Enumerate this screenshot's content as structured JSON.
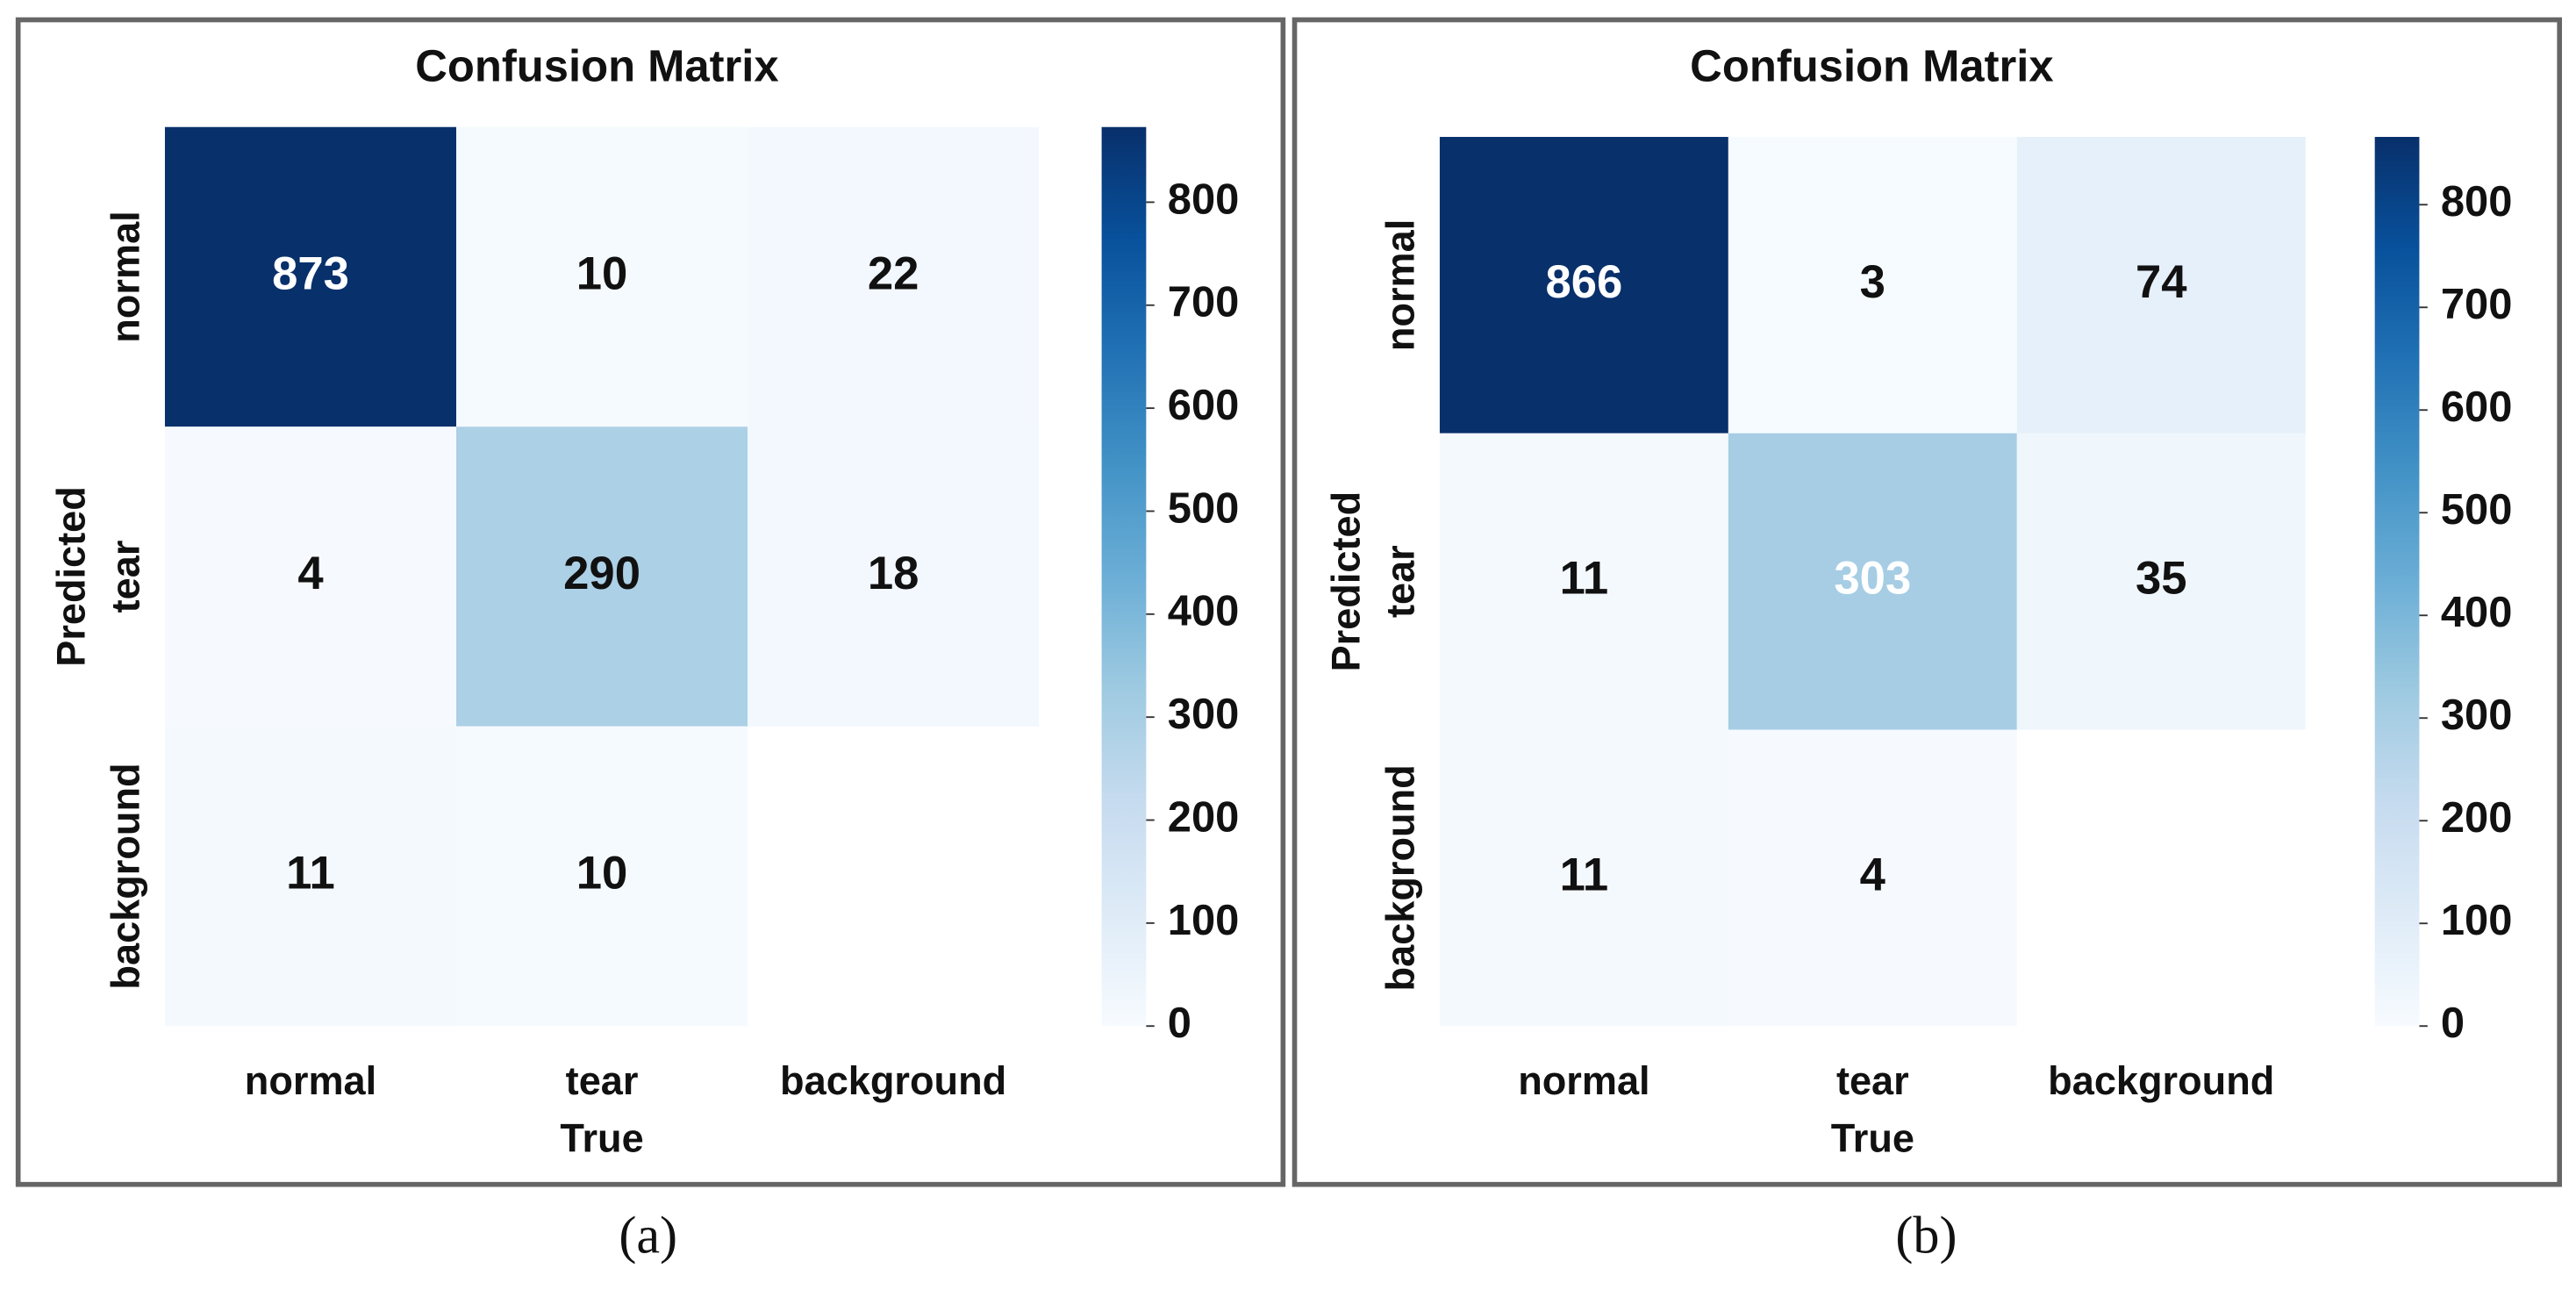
{
  "chart_data": [
    {
      "type": "heatmap",
      "title": "Confusion Matrix",
      "caption": "(a)",
      "x_label": "True",
      "y_label": "Predicted",
      "x_categories": [
        "normal",
        "tear",
        "background"
      ],
      "y_categories": [
        "normal",
        "tear",
        "background"
      ],
      "values": [
        [
          873,
          10,
          22
        ],
        [
          4,
          290,
          18
        ],
        [
          11,
          10,
          null
        ]
      ],
      "clim": [
        0,
        873
      ],
      "cticks": [
        0,
        100,
        200,
        300,
        400,
        500,
        600,
        700,
        800
      ],
      "colormap": "Blues"
    },
    {
      "type": "heatmap",
      "title": "Confusion Matrix",
      "caption": "(b)",
      "x_label": "True",
      "y_label": "Predicted",
      "x_categories": [
        "normal",
        "tear",
        "background"
      ],
      "y_categories": [
        "normal",
        "tear",
        "background"
      ],
      "values": [
        [
          866,
          3,
          74
        ],
        [
          11,
          303,
          35
        ],
        [
          11,
          4,
          null
        ]
      ],
      "clim": [
        0,
        866
      ],
      "cticks": [
        0,
        100,
        200,
        300,
        400,
        500,
        600,
        700,
        800
      ],
      "colormap": "Blues"
    }
  ]
}
